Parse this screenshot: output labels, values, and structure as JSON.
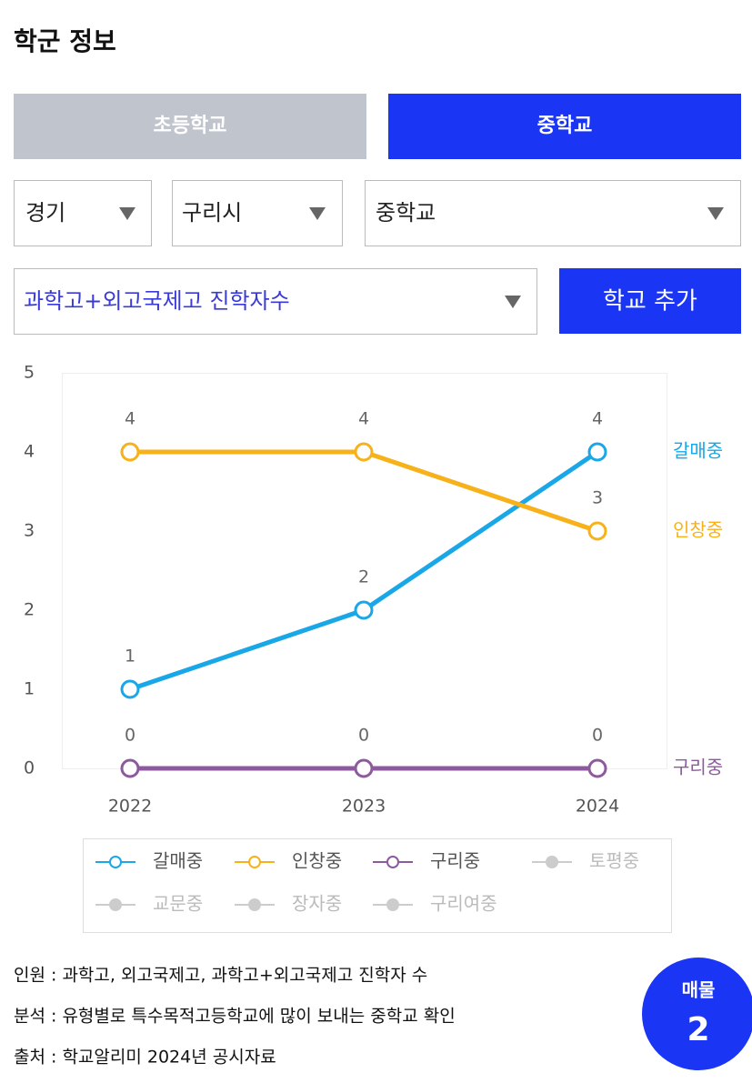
{
  "title": "학군 정보",
  "tabs": [
    "초등학교",
    "중학교"
  ],
  "filters": [
    "경기",
    "구리시",
    "중학교",
    "과학고+외고국제고 진학자수"
  ],
  "add_button": "학교 추가",
  "chart_data": {
    "type": "line",
    "categories": [
      "2022",
      "2023",
      "2024"
    ],
    "series": [
      {
        "name": "갈매중",
        "color": "#1aa7e8",
        "values": [
          1,
          2,
          4
        ]
      },
      {
        "name": "인창중",
        "color": "#f7b21b",
        "values": [
          4,
          4,
          3
        ]
      },
      {
        "name": "구리중",
        "color": "#8e5a9e",
        "values": [
          0,
          0,
          0
        ]
      }
    ],
    "hidden_series": [
      "토평중",
      "교문중",
      "장자중",
      "구리여중"
    ],
    "ylim": [
      0,
      5
    ],
    "yticks": [
      0,
      1,
      2,
      3,
      4,
      5
    ]
  },
  "notes": [
    "인원 : 과학고, 외고국제고, 과학고+외고국제고 진학자 수",
    "분석 : 유형별로 특수목적고등학교에 많이 보내는 중학교 확인",
    "출처 : 학교알리미 2024년 공시자료"
  ],
  "badge": {
    "label": "매물",
    "count": "2"
  }
}
